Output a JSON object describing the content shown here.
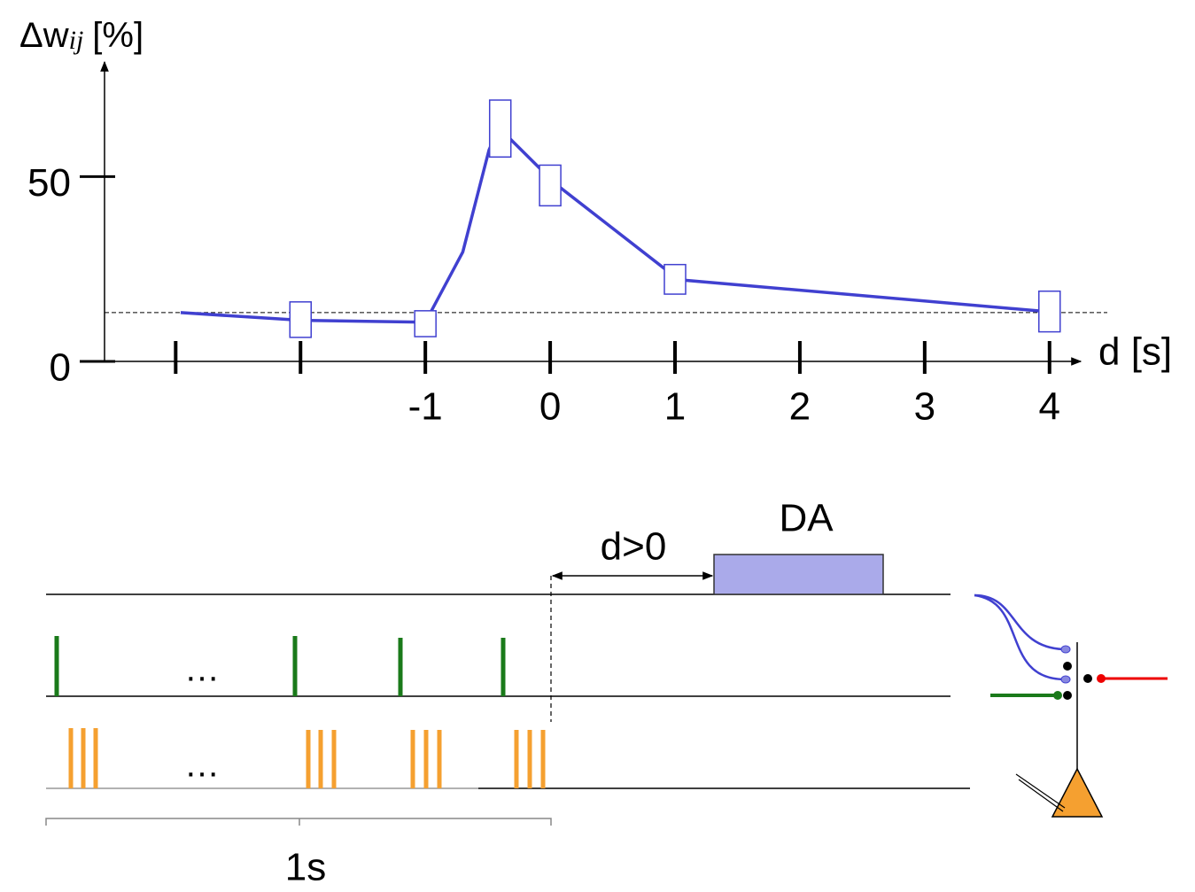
{
  "chart_data": {
    "type": "line",
    "ylabel": {
      "base": "Δw",
      "sub": "ij",
      "unit": "[%]"
    },
    "xlabel": "d [s]",
    "xlim": [
      -3.57,
      4.25
    ],
    "ylim": [
      0,
      81
    ],
    "xticks": [
      -1,
      0,
      1,
      2,
      3,
      4
    ],
    "minor_xticks": [
      -3,
      -2
    ],
    "yticks": [
      0,
      50
    ],
    "baseline": 13.2,
    "series": [
      {
        "color": "#4040d0",
        "x": [
          -2.96,
          -1.99,
          -1.0,
          -0.7,
          -0.49,
          -0.41,
          0.04,
          1.03,
          3.97
        ],
        "values": [
          13.2,
          11.1,
          10.6,
          29.6,
          57.2,
          63.2,
          48.1,
          22.1,
          13.5
        ]
      }
    ],
    "error_boxes": {
      "color": "#4040d0",
      "x": [
        -2,
        -1,
        -0.4,
        0,
        1,
        4
      ],
      "values": [
        11.3,
        10.2,
        63,
        47.6,
        22.2,
        13.5
      ],
      "errors": [
        4.8,
        3.5,
        7.7,
        5.5,
        4.0,
        5.5
      ]
    }
  },
  "diagram": {
    "da_label": "DA",
    "delay_label": "d>0",
    "ellipsis": [
      "…",
      "…"
    ],
    "duration_label": "1s"
  }
}
